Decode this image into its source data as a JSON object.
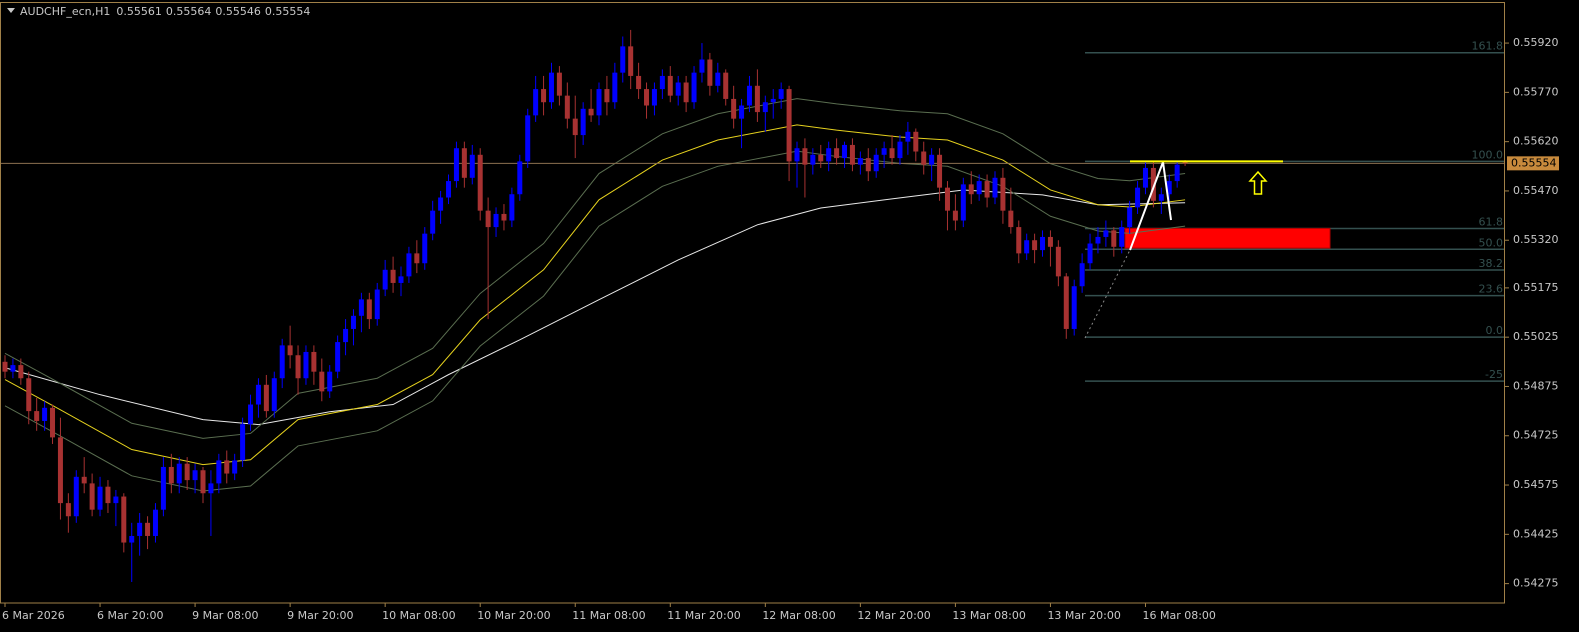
{
  "chart_data": {
    "type": "candlestick",
    "title": "AUDCHF_ecn,H1",
    "header_ohlc": [
      0.55561,
      0.55564,
      0.55546,
      0.55554
    ],
    "up_color": "#0000ff",
    "down_color": "#a83232",
    "ylim": [
      0.54216,
      0.56045
    ],
    "yticks": [
      {
        "value": 0.5592,
        "label": "0.55920"
      },
      {
        "value": 0.5577,
        "label": "0.55770"
      },
      {
        "value": 0.5562,
        "label": "0.55620"
      },
      {
        "value": 0.5547,
        "label": "0.55470"
      },
      {
        "value": 0.5532,
        "label": "0.55320"
      },
      0.55175,
      0.55025,
      0.54875,
      0.54725,
      0.54575,
      0.54425,
      0.54275
    ],
    "xticks": [
      {
        "value": 0,
        "label": "6 Mar 2026"
      },
      {
        "value": 12,
        "label": "6 Mar 20:00"
      },
      {
        "value": 24,
        "label": "9 Mar 08:00"
      },
      {
        "value": 36,
        "label": "9 Mar 20:00"
      },
      {
        "value": 48,
        "label": "10 Mar 08:00"
      },
      {
        "value": 60,
        "label": "10 Mar 20:00"
      },
      {
        "value": 72,
        "label": "11 Mar 08:00"
      },
      {
        "value": 84,
        "label": "11 Mar 20:00"
      },
      {
        "value": 96,
        "label": "12 Mar 08:00"
      },
      {
        "value": 108,
        "label": "12 Mar 20:00"
      },
      {
        "value": 120,
        "label": "13 Mar 08:00"
      },
      {
        "value": 132,
        "label": "13 Mar 20:00"
      },
      {
        "value": 144,
        "label": "16 Mar 08:00"
      }
    ],
    "candles": [
      [
        0.5495,
        0.5497,
        0.549,
        0.5492
      ],
      [
        0.5492,
        0.5496,
        0.549,
        0.5494
      ],
      [
        0.5494,
        0.5496,
        0.5488,
        0.549
      ],
      [
        0.549,
        0.5492,
        0.5476,
        0.548
      ],
      [
        0.548,
        0.5484,
        0.5474,
        0.5477
      ],
      [
        0.5477,
        0.5483,
        0.5474,
        0.5481
      ],
      [
        0.5481,
        0.5482,
        0.547,
        0.5472
      ],
      [
        0.5472,
        0.5478,
        0.5447,
        0.5452
      ],
      [
        0.5452,
        0.5455,
        0.5443,
        0.5448
      ],
      [
        0.5448,
        0.5462,
        0.5446,
        0.546
      ],
      [
        0.546,
        0.5466,
        0.5455,
        0.5458
      ],
      [
        0.5458,
        0.5461,
        0.5448,
        0.545
      ],
      [
        0.545,
        0.546,
        0.5448,
        0.5457
      ],
      [
        0.5457,
        0.5459,
        0.5449,
        0.5452
      ],
      [
        0.5452,
        0.5456,
        0.5445,
        0.5454
      ],
      [
        0.5454,
        0.5455,
        0.5437,
        0.544
      ],
      [
        0.544,
        0.5446,
        0.5428,
        0.5442
      ],
      [
        0.5442,
        0.5449,
        0.5436,
        0.5446
      ],
      [
        0.5446,
        0.5448,
        0.5438,
        0.5442
      ],
      [
        0.5442,
        0.5452,
        0.544,
        0.545
      ],
      [
        0.545,
        0.5466,
        0.5448,
        0.5463
      ],
      [
        0.5463,
        0.5467,
        0.5455,
        0.5458
      ],
      [
        0.5458,
        0.5466,
        0.5455,
        0.5464
      ],
      [
        0.5464,
        0.5466,
        0.5456,
        0.5459
      ],
      [
        0.5459,
        0.5464,
        0.5455,
        0.5462
      ],
      [
        0.5462,
        0.5463,
        0.5452,
        0.5455
      ],
      [
        0.5455,
        0.5462,
        0.5442,
        0.5458
      ],
      [
        0.5458,
        0.5467,
        0.5455,
        0.5465
      ],
      [
        0.5465,
        0.5468,
        0.5458,
        0.5461
      ],
      [
        0.5461,
        0.5467,
        0.5459,
        0.5465
      ],
      [
        0.5465,
        0.5478,
        0.5463,
        0.5476
      ],
      [
        0.5476,
        0.5485,
        0.5474,
        0.5482
      ],
      [
        0.5482,
        0.549,
        0.5478,
        0.5488
      ],
      [
        0.5488,
        0.5491,
        0.5478,
        0.548
      ],
      [
        0.548,
        0.5492,
        0.5478,
        0.549
      ],
      [
        0.549,
        0.5502,
        0.5487,
        0.55
      ],
      [
        0.55,
        0.5506,
        0.5493,
        0.5497
      ],
      [
        0.5497,
        0.55,
        0.5485,
        0.549
      ],
      [
        0.549,
        0.55,
        0.5488,
        0.5498
      ],
      [
        0.5498,
        0.55,
        0.5488,
        0.5492
      ],
      [
        0.5492,
        0.5496,
        0.5483,
        0.5486
      ],
      [
        0.5486,
        0.5494,
        0.5484,
        0.5492
      ],
      [
        0.5492,
        0.5503,
        0.549,
        0.5501
      ],
      [
        0.5501,
        0.5508,
        0.5497,
        0.5505
      ],
      [
        0.5505,
        0.5511,
        0.55,
        0.5509
      ],
      [
        0.5509,
        0.5516,
        0.5504,
        0.5514
      ],
      [
        0.5514,
        0.5516,
        0.5505,
        0.5508
      ],
      [
        0.5508,
        0.5519,
        0.5506,
        0.5517
      ],
      [
        0.5517,
        0.5526,
        0.5515,
        0.5523
      ],
      [
        0.5523,
        0.5527,
        0.5516,
        0.5519
      ],
      [
        0.5519,
        0.5524,
        0.5515,
        0.5521
      ],
      [
        0.5521,
        0.553,
        0.5519,
        0.5528
      ],
      [
        0.5528,
        0.5532,
        0.5522,
        0.5525
      ],
      [
        0.5525,
        0.5536,
        0.5523,
        0.5534
      ],
      [
        0.5534,
        0.5544,
        0.5532,
        0.5541
      ],
      [
        0.5541,
        0.5547,
        0.5537,
        0.5545
      ],
      [
        0.5545,
        0.5552,
        0.5543,
        0.555
      ],
      [
        0.555,
        0.5562,
        0.5548,
        0.556
      ],
      [
        0.556,
        0.5562,
        0.5548,
        0.5551
      ],
      [
        0.5551,
        0.5561,
        0.5549,
        0.5558
      ],
      [
        0.5558,
        0.556,
        0.5538,
        0.5541
      ],
      [
        0.5541,
        0.5545,
        0.5508,
        0.5536
      ],
      [
        0.5536,
        0.5542,
        0.5533,
        0.554
      ],
      [
        0.554,
        0.5543,
        0.5535,
        0.5538
      ],
      [
        0.5538,
        0.5548,
        0.5536,
        0.5546
      ],
      [
        0.5546,
        0.5558,
        0.5544,
        0.5556
      ],
      [
        0.5556,
        0.5572,
        0.5554,
        0.557
      ],
      [
        0.557,
        0.5582,
        0.5568,
        0.5578
      ],
      [
        0.5578,
        0.5582,
        0.557,
        0.5574
      ],
      [
        0.5574,
        0.5586,
        0.5572,
        0.5583
      ],
      [
        0.5583,
        0.5585,
        0.5573,
        0.5576
      ],
      [
        0.5576,
        0.558,
        0.5566,
        0.5569
      ],
      [
        0.5569,
        0.5576,
        0.5557,
        0.5564
      ],
      [
        0.5564,
        0.5574,
        0.5561,
        0.5572
      ],
      [
        0.5572,
        0.5578,
        0.5568,
        0.557
      ],
      [
        0.557,
        0.558,
        0.5567,
        0.5578
      ],
      [
        0.5578,
        0.5582,
        0.557,
        0.5574
      ],
      [
        0.5574,
        0.5586,
        0.5572,
        0.5583
      ],
      [
        0.5583,
        0.5594,
        0.558,
        0.5591
      ],
      [
        0.5591,
        0.5596,
        0.5578,
        0.5582
      ],
      [
        0.5582,
        0.5586,
        0.5575,
        0.5578
      ],
      [
        0.5578,
        0.558,
        0.5569,
        0.5573
      ],
      [
        0.5573,
        0.558,
        0.557,
        0.5578
      ],
      [
        0.5578,
        0.5584,
        0.5575,
        0.5582
      ],
      [
        0.5582,
        0.5585,
        0.5574,
        0.5576
      ],
      [
        0.5576,
        0.5582,
        0.5573,
        0.558
      ],
      [
        0.558,
        0.5582,
        0.5571,
        0.5574
      ],
      [
        0.5574,
        0.5585,
        0.5572,
        0.5583
      ],
      [
        0.5583,
        0.5592,
        0.558,
        0.5587
      ],
      [
        0.5587,
        0.5589,
        0.5576,
        0.5579
      ],
      [
        0.5579,
        0.5586,
        0.5577,
        0.5583
      ],
      [
        0.5583,
        0.5584,
        0.5573,
        0.5575
      ],
      [
        0.5575,
        0.5579,
        0.5566,
        0.5569
      ],
      [
        0.5569,
        0.5575,
        0.556,
        0.5573
      ],
      [
        0.5573,
        0.5582,
        0.5571,
        0.5579
      ],
      [
        0.5579,
        0.5584,
        0.5568,
        0.5571
      ],
      [
        0.5571,
        0.5576,
        0.5565,
        0.5574
      ],
      [
        0.5574,
        0.5578,
        0.5569,
        0.5575
      ],
      [
        0.5575,
        0.558,
        0.5572,
        0.5578
      ],
      [
        0.5578,
        0.5579,
        0.555,
        0.5556
      ],
      [
        0.5556,
        0.5562,
        0.5548,
        0.556
      ],
      [
        0.556,
        0.5563,
        0.5545,
        0.5555
      ],
      [
        0.5555,
        0.556,
        0.5552,
        0.5558
      ],
      [
        0.5558,
        0.5561,
        0.5554,
        0.5556
      ],
      [
        0.5556,
        0.5562,
        0.5553,
        0.556
      ],
      [
        0.556,
        0.5563,
        0.5555,
        0.5557
      ],
      [
        0.5557,
        0.5562,
        0.5554,
        0.5561
      ],
      [
        0.5561,
        0.5563,
        0.5553,
        0.5555
      ],
      [
        0.5555,
        0.5559,
        0.5552,
        0.5557
      ],
      [
        0.5557,
        0.556,
        0.555,
        0.5553
      ],
      [
        0.5553,
        0.556,
        0.5551,
        0.5558
      ],
      [
        0.5558,
        0.5562,
        0.5554,
        0.556
      ],
      [
        0.556,
        0.5564,
        0.5555,
        0.5557
      ],
      [
        0.5557,
        0.5564,
        0.5555,
        0.5562
      ],
      [
        0.5562,
        0.5568,
        0.5558,
        0.5565
      ],
      [
        0.5565,
        0.5566,
        0.5556,
        0.5559
      ],
      [
        0.5559,
        0.5562,
        0.5552,
        0.5555
      ],
      [
        0.5555,
        0.556,
        0.555,
        0.5558
      ],
      [
        0.5558,
        0.556,
        0.5544,
        0.5548
      ],
      [
        0.5548,
        0.555,
        0.5535,
        0.5541
      ],
      [
        0.5541,
        0.5546,
        0.5535,
        0.5538
      ],
      [
        0.5538,
        0.5551,
        0.5536,
        0.5549
      ],
      [
        0.5549,
        0.5553,
        0.5543,
        0.5546
      ],
      [
        0.5546,
        0.5552,
        0.5544,
        0.555
      ],
      [
        0.555,
        0.5552,
        0.5542,
        0.5545
      ],
      [
        0.5545,
        0.5553,
        0.5543,
        0.5551
      ],
      [
        0.5551,
        0.5554,
        0.5537,
        0.5541
      ],
      [
        0.5541,
        0.5548,
        0.5534,
        0.5536
      ],
      [
        0.5536,
        0.5538,
        0.5525,
        0.5528
      ],
      [
        0.5528,
        0.5534,
        0.5526,
        0.5532
      ],
      [
        0.5532,
        0.5534,
        0.5525,
        0.5529
      ],
      [
        0.5529,
        0.5535,
        0.5527,
        0.5533
      ],
      [
        0.5533,
        0.5535,
        0.5524,
        0.553
      ],
      [
        0.553,
        0.5532,
        0.5518,
        0.5521
      ],
      [
        0.5521,
        0.5522,
        0.5502,
        0.5505
      ],
      [
        0.5505,
        0.552,
        0.5503,
        0.5518
      ],
      [
        0.5518,
        0.5528,
        0.5516,
        0.5525
      ],
      [
        0.5525,
        0.5534,
        0.5523,
        0.5531
      ],
      [
        0.5531,
        0.5536,
        0.5528,
        0.5533
      ],
      [
        0.5533,
        0.5538,
        0.553,
        0.5535
      ],
      [
        0.5535,
        0.5536,
        0.5527,
        0.553
      ],
      [
        0.553,
        0.5538,
        0.5528,
        0.5536
      ],
      [
        0.5536,
        0.5544,
        0.5534,
        0.5542
      ],
      [
        0.5542,
        0.555,
        0.554,
        0.5548
      ],
      [
        0.5548,
        0.5556,
        0.5546,
        0.5554
      ],
      [
        0.5554,
        0.5556,
        0.5542,
        0.5544
      ],
      [
        0.5544,
        0.5548,
        0.554,
        0.5546
      ],
      [
        0.5546,
        0.5552,
        0.5544,
        0.555
      ],
      [
        0.555,
        0.5556,
        0.5548,
        0.5555
      ],
      [
        0.55561,
        0.55564,
        0.55546,
        0.55554
      ]
    ],
    "series": [
      {
        "color": "#e8e8e8",
        "x": [
          0,
          12,
          25,
          32,
          41,
          49,
          56,
          65,
          75,
          85,
          95,
          103,
          113,
          121,
          131,
          138,
          149
        ],
        "values": [
          0.54932,
          0.5485,
          0.54774,
          0.54759,
          0.54798,
          0.5482,
          0.54911,
          0.55017,
          0.55139,
          0.5526,
          0.55367,
          0.55418,
          0.55449,
          0.55473,
          0.55458,
          0.55428,
          0.55434
        ]
      },
      {
        "color": "#5a6e50",
        "x": [
          0,
          7,
          16,
          25,
          31,
          37,
          47,
          54,
          60,
          68,
          75,
          83,
          90,
          100,
          105,
          113,
          119,
          126,
          132,
          138,
          142,
          149
        ],
        "values": [
          0.54976,
          0.54884,
          0.54763,
          0.54717,
          0.54732,
          0.54854,
          0.549,
          0.54991,
          0.55158,
          0.5531,
          0.55523,
          0.55644,
          0.55705,
          0.55751,
          0.55735,
          0.55714,
          0.55705,
          0.55644,
          0.55553,
          0.55508,
          0.55501,
          0.55523
        ]
      },
      {
        "color": "#5a6e50",
        "x": [
          0,
          7,
          16,
          25,
          31,
          37,
          47,
          54,
          60,
          68,
          75,
          83,
          90,
          100,
          105,
          113,
          119,
          126,
          132,
          138,
          142,
          149
        ],
        "values": [
          0.54816,
          0.54724,
          0.54603,
          0.54557,
          0.54572,
          0.54694,
          0.5474,
          0.54831,
          0.54998,
          0.5515,
          0.55363,
          0.55484,
          0.55545,
          0.55591,
          0.55575,
          0.55554,
          0.55545,
          0.55484,
          0.55393,
          0.55348,
          0.55341,
          0.55363
        ]
      },
      {
        "color": "#e6d21e",
        "x": [
          0,
          7,
          16,
          25,
          31,
          37,
          47,
          54,
          60,
          68,
          75,
          83,
          90,
          100,
          105,
          113,
          119,
          126,
          132,
          138,
          142,
          149
        ],
        "values": [
          0.54896,
          0.54804,
          0.54683,
          0.54637,
          0.54652,
          0.54774,
          0.5482,
          0.54911,
          0.55078,
          0.5523,
          0.55443,
          0.55564,
          0.55625,
          0.55671,
          0.55655,
          0.55634,
          0.55625,
          0.55564,
          0.55473,
          0.55428,
          0.55421,
          0.55443
        ]
      }
    ],
    "fibonacci": {
      "low": 0.55025,
      "high": 0.5556,
      "color": "#34504f",
      "levels": [
        161.8,
        {
          "value": 100,
          "label": "100.0"
        },
        61.8,
        {
          "value": 50,
          "label": "50.0"
        },
        38.2,
        23.6,
        {
          "value": 0,
          "label": "0.0"
        },
        -25
      ]
    },
    "zone": {
      "top": 0.55356,
      "bottom": 0.55296,
      "color": "#ff0000"
    },
    "level_line": {
      "value": 0.5556,
      "color": "#ffff00"
    }
  }
}
